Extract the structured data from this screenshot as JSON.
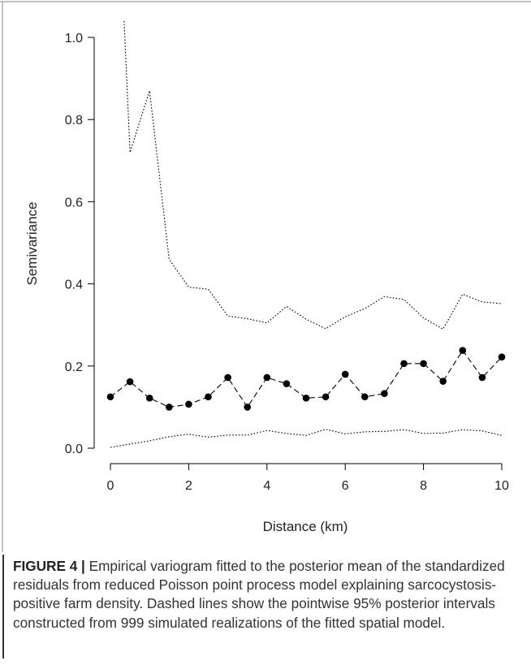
{
  "chart_data": {
    "type": "line",
    "xlabel": "Distance (km)",
    "ylabel": "Semivariance",
    "xlim": [
      0,
      10
    ],
    "ylim": [
      0,
      1.0
    ],
    "x_ticks": [
      "0",
      "2",
      "4",
      "6",
      "8",
      "10"
    ],
    "y_ticks": [
      "0.0",
      "0.2",
      "0.4",
      "0.6",
      "0.8",
      "1.0"
    ],
    "grid": false,
    "legend": "none",
    "series": [
      {
        "style": "dashed-points",
        "x": [
          0,
          0.5,
          1,
          1.5,
          2,
          2.5,
          3,
          3.5,
          4,
          4.5,
          5,
          5.5,
          6,
          6.5,
          7,
          7.5,
          8,
          8.5,
          9,
          9.5,
          10
        ],
        "y": [
          0.125,
          0.162,
          0.122,
          0.1,
          0.107,
          0.125,
          0.172,
          0.1,
          0.172,
          0.157,
          0.122,
          0.125,
          0.18,
          0.125,
          0.133,
          0.206,
          0.206,
          0.163,
          0.238,
          0.172,
          0.222
        ]
      },
      {
        "style": "dotted-upper",
        "x": [
          0.35,
          0.5,
          1,
          1.5,
          2,
          2.5,
          3,
          3.5,
          4,
          4.5,
          5,
          5.5,
          6,
          6.5,
          7,
          7.5,
          8,
          8.5,
          9,
          9.5,
          10
        ],
        "y": [
          1.04,
          0.72,
          0.87,
          0.46,
          0.392,
          0.387,
          0.322,
          0.315,
          0.305,
          0.345,
          0.314,
          0.291,
          0.32,
          0.34,
          0.369,
          0.362,
          0.317,
          0.29,
          0.375,
          0.356,
          0.352
        ]
      },
      {
        "style": "dotted-lower",
        "x": [
          0,
          0.5,
          1,
          1.5,
          2,
          2.5,
          3,
          3.5,
          4,
          4.5,
          5,
          5.5,
          6,
          6.5,
          7,
          7.5,
          8,
          8.5,
          9,
          9.5,
          10
        ],
        "y": [
          0.002,
          0.01,
          0.018,
          0.028,
          0.034,
          0.027,
          0.032,
          0.032,
          0.043,
          0.036,
          0.031,
          0.046,
          0.035,
          0.04,
          0.041,
          0.045,
          0.036,
          0.037,
          0.045,
          0.042,
          0.031
        ]
      }
    ]
  },
  "caption": {
    "label": "FIGURE 4 |",
    "text": " Empirical variogram fitted to the posterior mean of the standardized residuals from reduced Poisson point process model explaining sarcocystosis-positive farm density. Dashed lines show the pointwise 95% posterior intervals constructed from 999 simulated realizations of the fitted spatial model."
  },
  "colors": {
    "ink": "#000000",
    "caption_text": "#333333"
  }
}
